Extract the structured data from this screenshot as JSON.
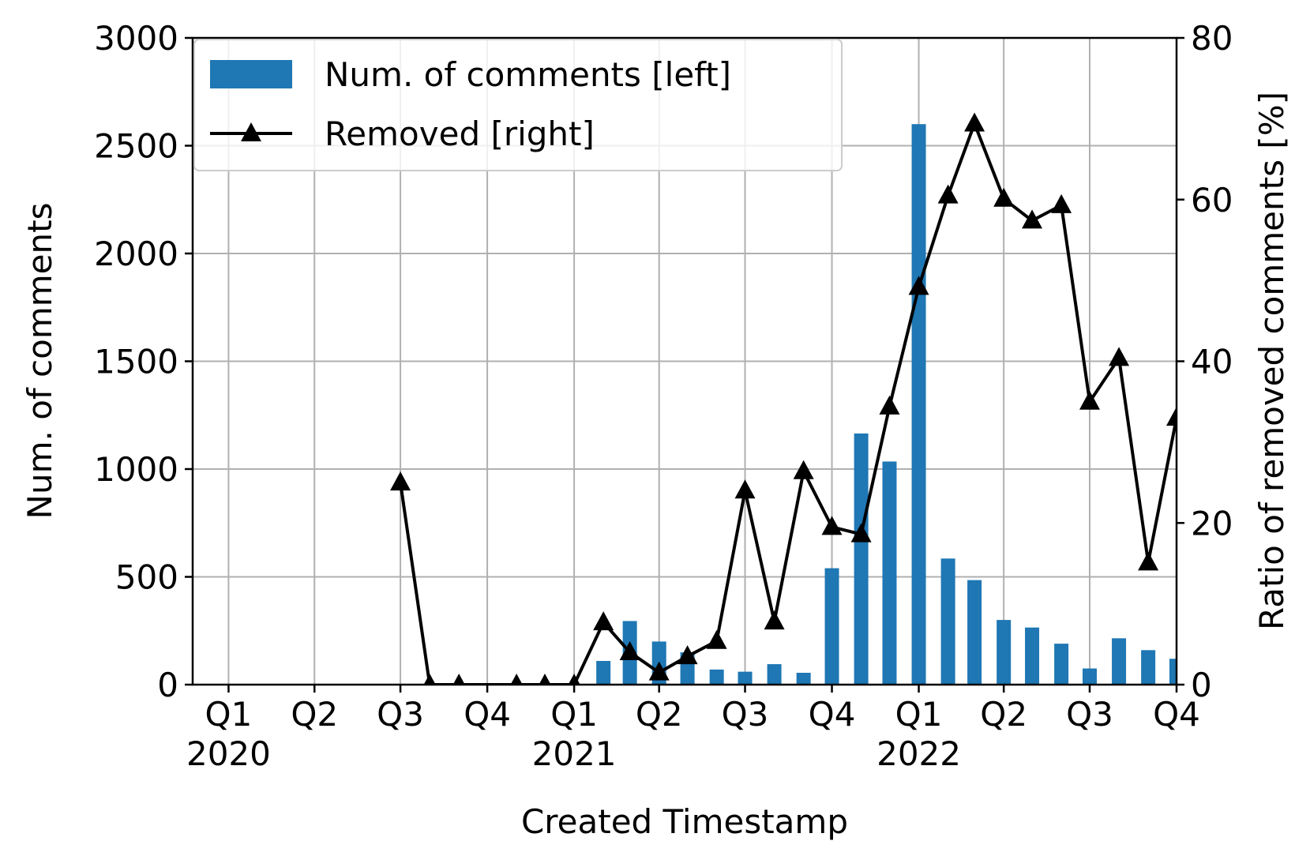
{
  "chart_data": {
    "type": "bar_line",
    "x_label": "Created Timestamp",
    "y_label": "Num. of comments",
    "y2_label": "Ratio of removed comments [%]",
    "x": [
      "2020-07",
      "2020-08",
      "2020-09",
      "2020-11",
      "2020-12",
      "2021-01",
      "2021-02",
      "2021-03",
      "2021-04",
      "2021-05",
      "2021-06",
      "2021-07",
      "2021-08",
      "2021-09",
      "2021-10",
      "2021-11",
      "2021-12",
      "2022-01",
      "2022-02",
      "2022-03",
      "2022-04",
      "2022-05",
      "2022-06",
      "2022-07",
      "2022-08",
      "2022-09",
      "2022-10"
    ],
    "series": [
      {
        "name": "Num. of comments [left]",
        "type": "bar",
        "color": "#1f77b4",
        "axis": "y",
        "values": [
          0,
          0,
          0,
          0,
          0,
          0,
          110,
          295,
          200,
          150,
          70,
          60,
          95,
          55,
          540,
          1165,
          1035,
          2600,
          585,
          485,
          300,
          265,
          190,
          75,
          215,
          160,
          120
        ]
      },
      {
        "name": "Removed [right]",
        "type": "line",
        "color": "#000000",
        "marker": "triangle",
        "axis": "y2",
        "values": [
          25,
          0,
          0,
          0,
          0,
          0,
          7.7,
          4,
          1.5,
          3.5,
          5.4,
          24,
          7.8,
          26.4,
          19.5,
          18.6,
          34.4,
          49.2,
          60.5,
          69.4,
          60.1,
          57.4,
          59.3,
          35,
          40.4,
          15.1,
          33
        ]
      }
    ],
    "xlim": [
      "2019-11-24",
      "2022-10-01"
    ],
    "xticks": [
      {
        "value": "2020-01",
        "label": "Q1\n2020"
      },
      {
        "value": "2020-04",
        "label": "Q2"
      },
      {
        "value": "2020-07",
        "label": "Q3"
      },
      {
        "value": "2020-10",
        "label": "Q4"
      },
      {
        "value": "2021-01",
        "label": "Q1\n2021"
      },
      {
        "value": "2021-04",
        "label": "Q2"
      },
      {
        "value": "2021-07",
        "label": "Q3"
      },
      {
        "value": "2021-10",
        "label": "Q4"
      },
      {
        "value": "2022-01",
        "label": "Q1\n2022"
      },
      {
        "value": "2022-04",
        "label": "Q2"
      },
      {
        "value": "2022-07",
        "label": "Q3"
      },
      {
        "value": "2022-10",
        "label": "Q4"
      }
    ],
    "ylim": [
      0,
      3000
    ],
    "yticks": [
      0,
      500,
      1000,
      1500,
      2000,
      2500,
      3000
    ],
    "y2lim": [
      0,
      80
    ],
    "y2ticks": [
      0,
      20,
      40,
      60,
      80
    ],
    "grid": true,
    "legend": "upper left"
  }
}
